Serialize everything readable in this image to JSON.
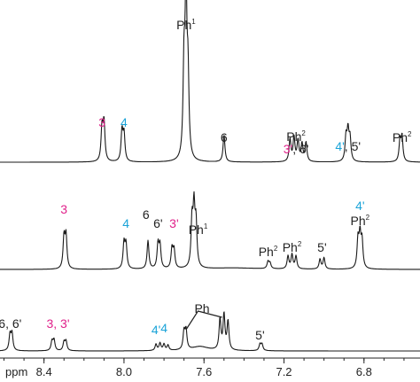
{
  "colors": {
    "magenta": "#e0218a",
    "cyan": "#1aa3d8",
    "black": "#222222"
  },
  "chart_data": {
    "type": "line",
    "xlabel": "ppm",
    "xlim": [
      8.62,
      6.52
    ],
    "axis_reversed": true,
    "x_ticks": [
      8.4,
      8.0,
      7.6,
      7.2,
      6.8
    ],
    "x_tick_labels": [
      "8.4",
      "8.0",
      "7.6",
      "7.2",
      "6.8"
    ],
    "series": [
      {
        "peaks": [
          {
            "ppm": 8.11,
            "height": 0.21
          },
          {
            "ppm": 8.1,
            "height": 0.24
          },
          {
            "ppm": 8.01,
            "height": 0.19
          },
          {
            "ppm": 8.0,
            "height": 0.17
          },
          {
            "ppm": 7.7,
            "height": 0.55
          },
          {
            "ppm": 7.69,
            "height": 1.0
          },
          {
            "ppm": 7.68,
            "height": 0.48
          },
          {
            "ppm": 7.5,
            "height": 0.17
          },
          {
            "ppm": 7.17,
            "height": 0.14
          },
          {
            "ppm": 7.15,
            "height": 0.15
          },
          {
            "ppm": 7.13,
            "height": 0.13
          },
          {
            "ppm": 7.11,
            "height": 0.11
          },
          {
            "ppm": 7.09,
            "height": 0.12
          },
          {
            "ppm": 6.89,
            "height": 0.15
          },
          {
            "ppm": 6.88,
            "height": 0.18
          },
          {
            "ppm": 6.87,
            "height": 0.14
          },
          {
            "ppm": 6.62,
            "height": 0.13
          },
          {
            "ppm": 6.61,
            "height": 0.15
          }
        ],
        "labels": [
          {
            "ppm": 8.11,
            "parts": [
              {
                "text": "3",
                "color": "magenta"
              }
            ]
          },
          {
            "ppm": 8.0,
            "parts": [
              {
                "text": "4",
                "color": "cyan"
              }
            ]
          },
          {
            "ppm": 7.69,
            "parts": [
              {
                "text": "Ph",
                "color": "black"
              },
              {
                "text": "1",
                "color": "black",
                "sup": true
              }
            ]
          },
          {
            "ppm": 7.5,
            "parts": [
              {
                "text": "6",
                "color": "black"
              }
            ]
          },
          {
            "ppm": 7.14,
            "parts": [
              {
                "text": "3'",
                "color": "magenta"
              },
              {
                "text": ", 6'",
                "color": "black"
              }
            ]
          },
          {
            "ppm": 7.14,
            "parts": [
              {
                "text": "Ph",
                "color": "black"
              },
              {
                "text": "2",
                "color": "black",
                "sup": true
              }
            ]
          },
          {
            "ppm": 6.88,
            "parts": [
              {
                "text": "4'",
                "color": "cyan"
              },
              {
                "text": ", 5'",
                "color": "black"
              }
            ]
          },
          {
            "ppm": 6.61,
            "parts": [
              {
                "text": "Ph",
                "color": "black"
              },
              {
                "text": "2",
                "color": "black",
                "sup": true
              }
            ]
          }
        ]
      },
      {
        "peaks": [
          {
            "ppm": 8.3,
            "height": 0.22
          },
          {
            "ppm": 8.29,
            "height": 0.23
          },
          {
            "ppm": 8.0,
            "height": 0.18
          },
          {
            "ppm": 7.99,
            "height": 0.17
          },
          {
            "ppm": 7.88,
            "height": 0.2
          },
          {
            "ppm": 7.83,
            "height": 0.17
          },
          {
            "ppm": 7.82,
            "height": 0.16
          },
          {
            "ppm": 7.76,
            "height": 0.14
          },
          {
            "ppm": 7.75,
            "height": 0.13
          },
          {
            "ppm": 7.66,
            "height": 0.32
          },
          {
            "ppm": 7.65,
            "height": 0.4
          },
          {
            "ppm": 7.64,
            "height": 0.3
          },
          {
            "ppm": 7.28,
            "height": 0.05
          },
          {
            "ppm": 7.27,
            "height": 0.04
          },
          {
            "ppm": 7.18,
            "height": 0.09
          },
          {
            "ppm": 7.16,
            "height": 0.1
          },
          {
            "ppm": 7.14,
            "height": 0.09
          },
          {
            "ppm": 7.02,
            "height": 0.07
          },
          {
            "ppm": 7.0,
            "height": 0.08
          },
          {
            "ppm": 6.83,
            "height": 0.2
          },
          {
            "ppm": 6.82,
            "height": 0.22
          },
          {
            "ppm": 6.81,
            "height": 0.19
          }
        ],
        "labels": [
          {
            "ppm": 8.3,
            "parts": [
              {
                "text": "3",
                "color": "magenta"
              }
            ]
          },
          {
            "ppm": 7.99,
            "parts": [
              {
                "text": "4",
                "color": "cyan"
              }
            ]
          },
          {
            "ppm": 7.89,
            "parts": [
              {
                "text": "6",
                "color": "black"
              }
            ]
          },
          {
            "ppm": 7.83,
            "parts": [
              {
                "text": "6'",
                "color": "black"
              }
            ]
          },
          {
            "ppm": 7.75,
            "parts": [
              {
                "text": "3'",
                "color": "magenta"
              }
            ]
          },
          {
            "ppm": 7.63,
            "parts": [
              {
                "text": "Ph",
                "color": "black"
              },
              {
                "text": "1",
                "color": "black",
                "sup": true
              }
            ]
          },
          {
            "ppm": 7.28,
            "parts": [
              {
                "text": "Ph",
                "color": "black"
              },
              {
                "text": "2",
                "color": "black",
                "sup": true
              }
            ]
          },
          {
            "ppm": 7.16,
            "parts": [
              {
                "text": "Ph",
                "color": "black"
              },
              {
                "text": "2",
                "color": "black",
                "sup": true
              }
            ]
          },
          {
            "ppm": 7.01,
            "parts": [
              {
                "text": "5'",
                "color": "black"
              }
            ]
          },
          {
            "ppm": 6.82,
            "parts": [
              {
                "text": "4'",
                "color": "cyan"
              }
            ]
          },
          {
            "ppm": 6.82,
            "parts": [
              {
                "text": "Ph",
                "color": "black"
              },
              {
                "text": "2",
                "color": "black",
                "sup": true
              }
            ]
          }
        ]
      },
      {
        "peaks": [
          {
            "ppm": 8.57,
            "height": 0.15
          },
          {
            "ppm": 8.56,
            "height": 0.16
          },
          {
            "ppm": 8.36,
            "height": 0.09
          },
          {
            "ppm": 8.35,
            "height": 0.1
          },
          {
            "ppm": 8.3,
            "height": 0.08
          },
          {
            "ppm": 8.29,
            "height": 0.09
          },
          {
            "ppm": 7.84,
            "height": 0.06
          },
          {
            "ppm": 7.82,
            "height": 0.07
          },
          {
            "ppm": 7.8,
            "height": 0.06
          },
          {
            "ppm": 7.78,
            "height": 0.05
          },
          {
            "ppm": 7.7,
            "height": 0.17
          },
          {
            "ppm": 7.69,
            "height": 0.18
          },
          {
            "ppm": 7.52,
            "height": 0.29
          },
          {
            "ppm": 7.5,
            "height": 0.33
          },
          {
            "ppm": 7.48,
            "height": 0.27
          },
          {
            "ppm": 7.32,
            "height": 0.06
          },
          {
            "ppm": 7.31,
            "height": 0.06
          }
        ],
        "labels": [
          {
            "ppm": 8.57,
            "parts": [
              {
                "text": "6, 6'",
                "color": "black"
              }
            ]
          },
          {
            "ppm": 8.33,
            "parts": [
              {
                "text": "3, 3'",
                "color": "magenta"
              }
            ]
          },
          {
            "ppm": 7.84,
            "parts": [
              {
                "text": "4'",
                "color": "cyan"
              }
            ]
          },
          {
            "ppm": 7.8,
            "parts": [
              {
                "text": "4",
                "color": "cyan"
              }
            ]
          },
          {
            "ppm": 7.61,
            "parts": [
              {
                "text": "Ph",
                "color": "black"
              }
            ]
          },
          {
            "ppm": 7.32,
            "parts": [
              {
                "text": "5'",
                "color": "black"
              }
            ]
          }
        ]
      }
    ]
  }
}
